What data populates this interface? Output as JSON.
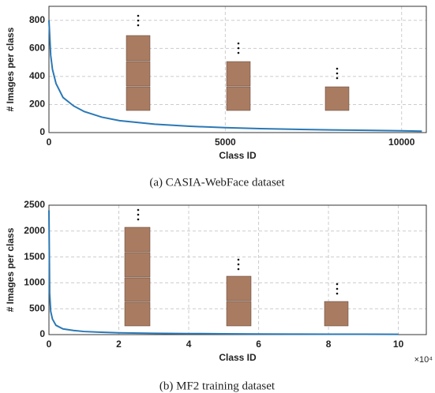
{
  "chart_data": [
    {
      "type": "line",
      "xlabel": "Class ID",
      "ylabel": "# Images per class",
      "caption": "(a)  CASIA-WebFace dataset",
      "x": [
        0,
        50,
        100,
        200,
        400,
        700,
        1000,
        1500,
        2000,
        3000,
        4000,
        5000,
        6000,
        7000,
        8000,
        9000,
        10000,
        10575
      ],
      "series": [
        {
          "color": "#2b78b5",
          "values": [
            800,
            550,
            450,
            350,
            250,
            190,
            150,
            110,
            85,
            60,
            45,
            35,
            28,
            23,
            19,
            16,
            13,
            10
          ]
        }
      ],
      "xlim": [
        0,
        10700
      ],
      "xticks": [
        0,
        5000,
        10000
      ],
      "ylim": [
        0,
        900
      ],
      "yticks": [
        0,
        200,
        400,
        600,
        800
      ],
      "grid": true
    },
    {
      "type": "line",
      "xlabel": "Class ID",
      "ylabel": "# Images per class",
      "caption": "(b)  MF2 training dataset",
      "x_exponent_label": "×10⁴",
      "x": [
        0,
        0.02,
        0.05,
        0.1,
        0.2,
        0.4,
        0.7,
        1,
        1.5,
        2,
        3,
        4,
        5,
        6,
        7,
        8,
        9,
        10
      ],
      "series": [
        {
          "color": "#2b78b5",
          "values": [
            2400,
            800,
            450,
            300,
            180,
            110,
            80,
            60,
            45,
            35,
            25,
            20,
            15,
            12,
            10,
            8,
            7,
            5
          ]
        }
      ],
      "xlim": [
        0,
        10.8
      ],
      "xticks": [
        0,
        2,
        4,
        6,
        8,
        10
      ],
      "ylim": [
        0,
        2500
      ],
      "yticks": [
        0,
        500,
        1000,
        1500,
        2000,
        2500
      ],
      "grid": true
    }
  ]
}
